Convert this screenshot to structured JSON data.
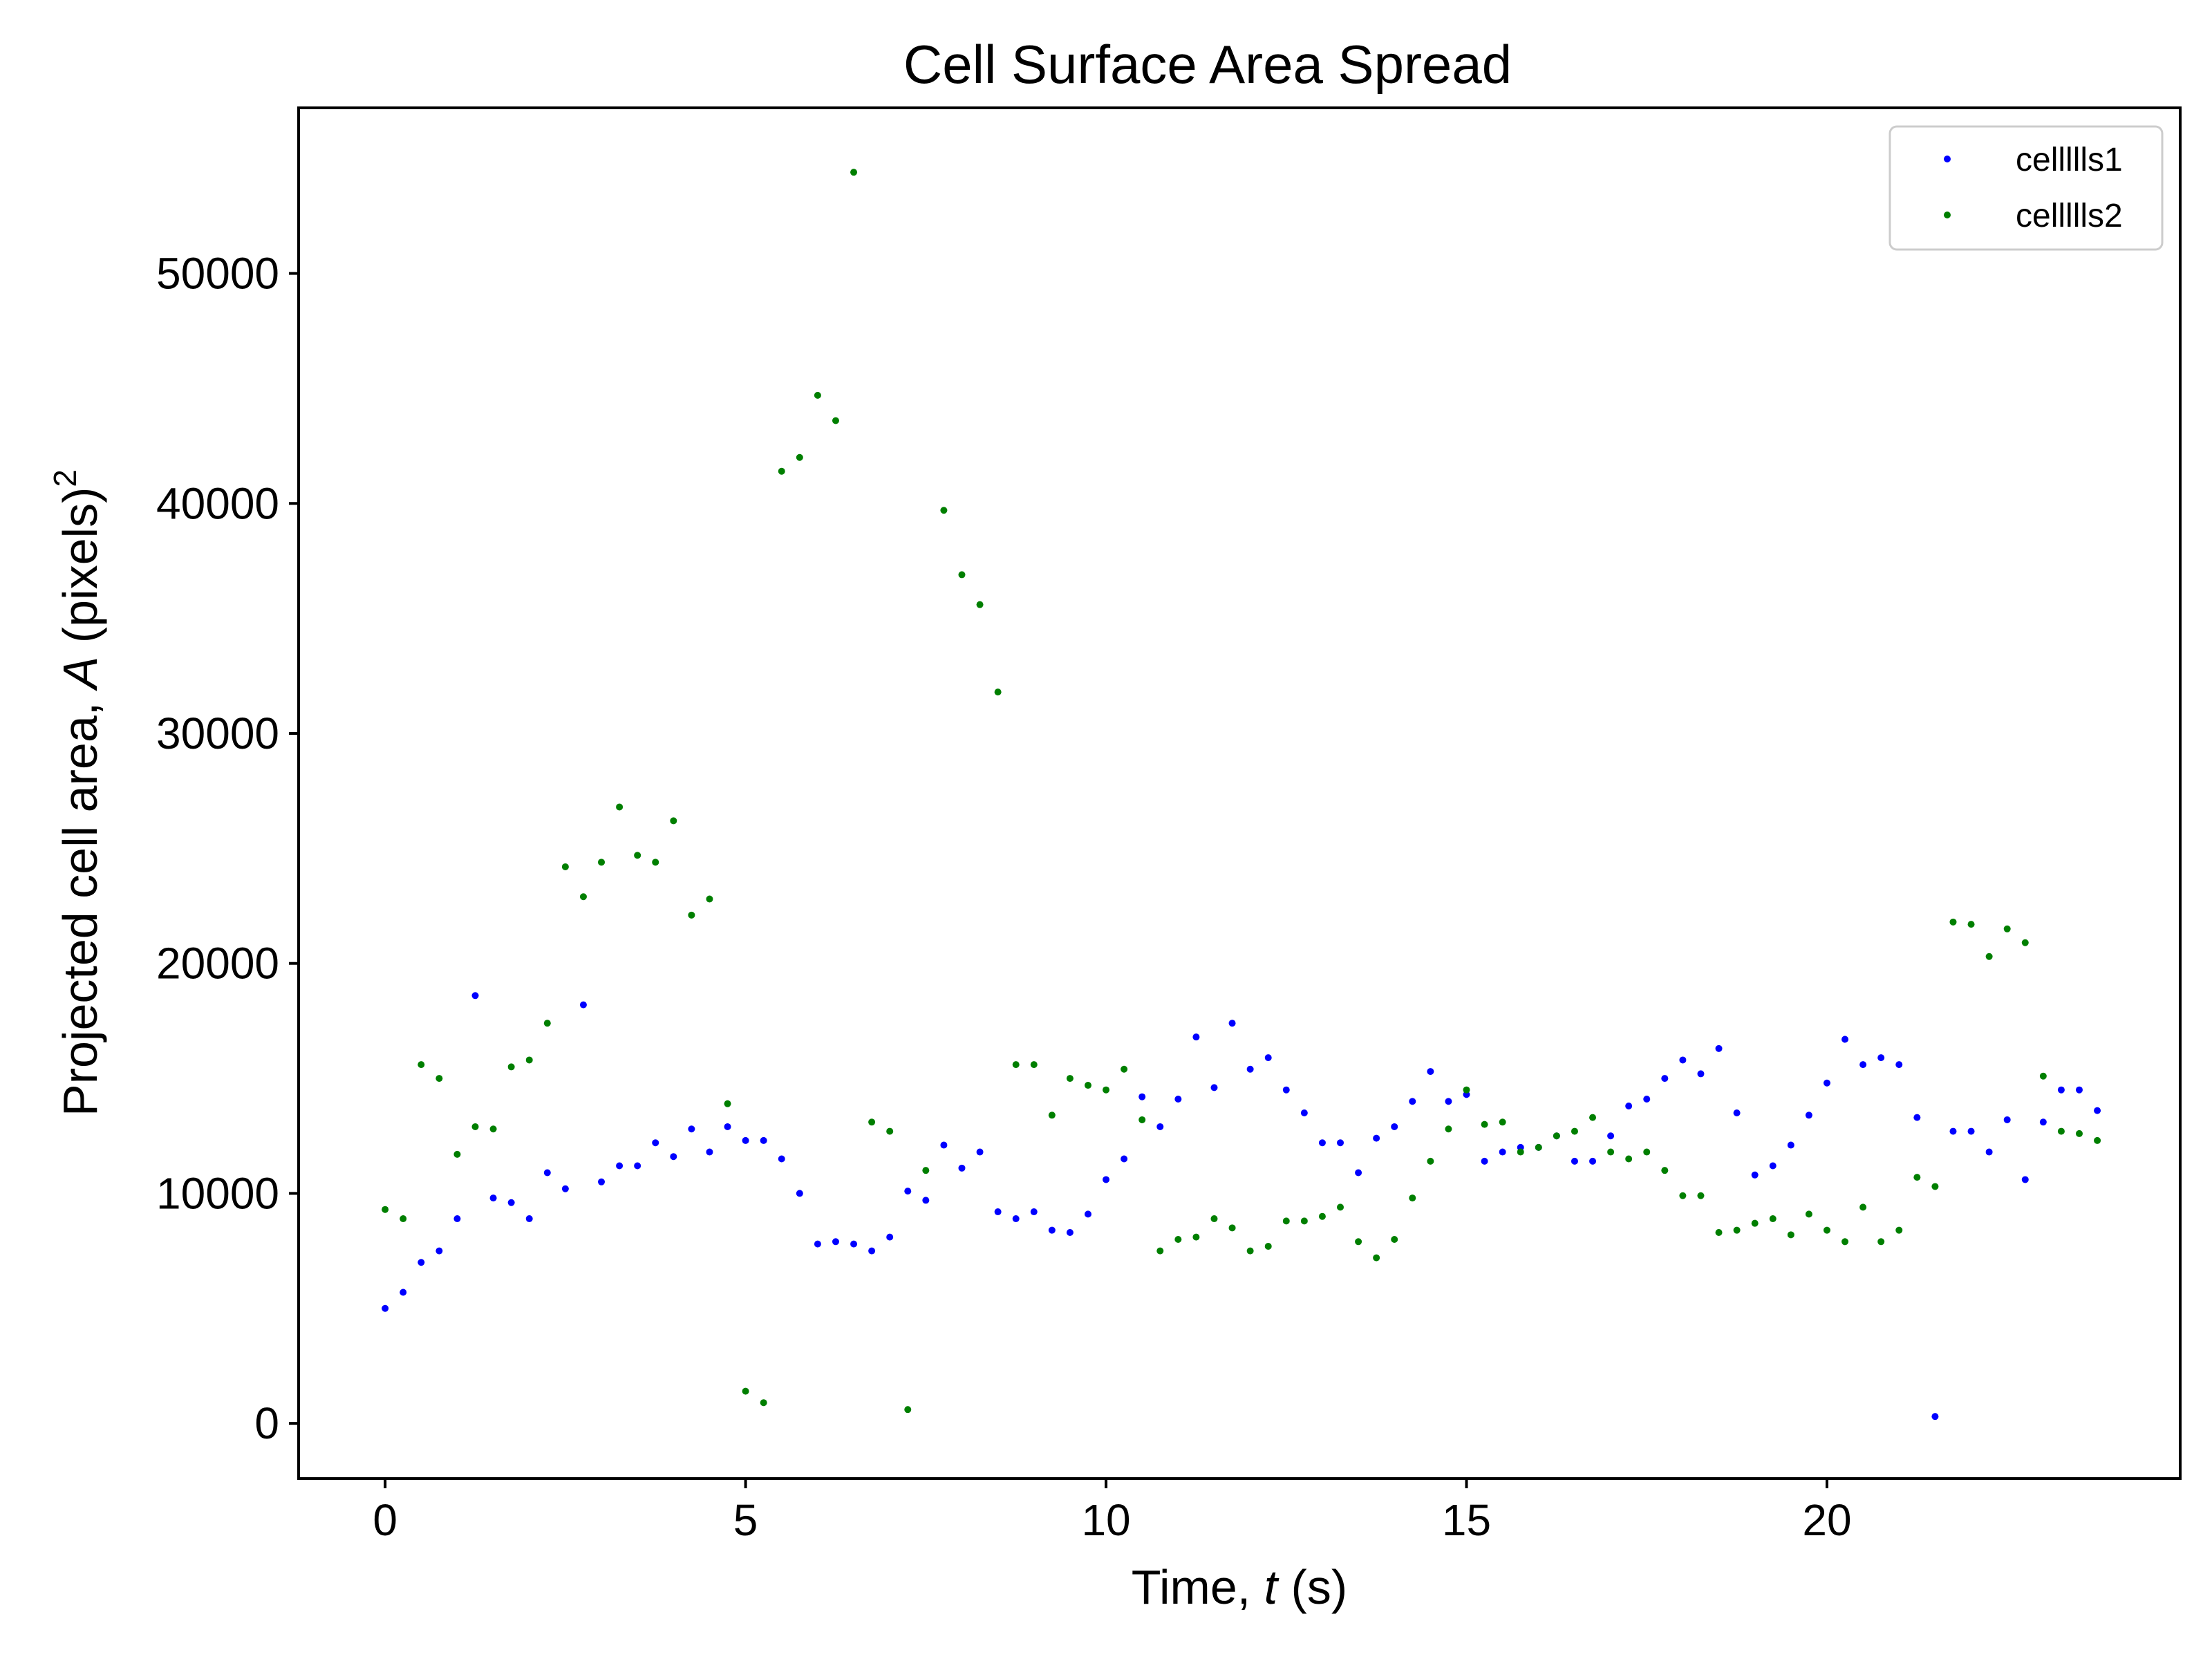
{
  "chart_data": {
    "type": "scatter",
    "title": "Cell Surface Area Spread",
    "xlabel": {
      "prefix": "Time, ",
      "var": "t",
      "suffix": " (s)"
    },
    "ylabel": {
      "prefix": "Projected cell area, ",
      "var": "A",
      "suffix": " (pixels)",
      "sup": "2"
    },
    "xlim": [
      -1.2,
      24.9
    ],
    "ylim": [
      -2400,
      57200
    ],
    "xticks": [
      0,
      5,
      10,
      15,
      20
    ],
    "yticks": [
      0,
      10000,
      20000,
      30000,
      40000,
      50000
    ],
    "grid": false,
    "legend_position": "top-right",
    "x": [
      0,
      0.25,
      0.5,
      0.75,
      1,
      1.25,
      1.5,
      1.75,
      2,
      2.25,
      2.5,
      2.75,
      3,
      3.25,
      3.5,
      3.75,
      4,
      4.25,
      4.5,
      4.75,
      5,
      5.25,
      5.5,
      5.75,
      6,
      6.25,
      6.5,
      6.75,
      7,
      7.25,
      7.5,
      7.75,
      8,
      8.25,
      8.5,
      8.75,
      9,
      9.25,
      9.5,
      9.75,
      10,
      10.25,
      10.5,
      10.75,
      11,
      11.25,
      11.5,
      11.75,
      12,
      12.25,
      12.5,
      12.75,
      13,
      13.25,
      13.5,
      13.75,
      14,
      14.25,
      14.5,
      14.75,
      15,
      15.25,
      15.5,
      15.75,
      16,
      16.25,
      16.5,
      16.75,
      17,
      17.25,
      17.5,
      17.75,
      18,
      18.25,
      18.5,
      18.75,
      19,
      19.25,
      19.5,
      19.75,
      20,
      20.25,
      20.5,
      20.75,
      21,
      21.25,
      21.5,
      21.75,
      22,
      22.25,
      22.5,
      22.75,
      23,
      23.25,
      23.5,
      23.75
    ],
    "series": [
      {
        "name": "cellllls1",
        "color": "#0000ff",
        "values": [
          5000,
          5700,
          7000,
          7500,
          8900,
          18600,
          9800,
          9600,
          8900,
          10900,
          10200,
          18200,
          10500,
          11200,
          11200,
          12200,
          11600,
          12800,
          11800,
          12900,
          12300,
          12300,
          11500,
          10000,
          7800,
          7900,
          7800,
          7500,
          8100,
          10100,
          9700,
          12100,
          11100,
          11800,
          9200,
          8900,
          9200,
          8400,
          8300,
          9100,
          10600,
          11500,
          14200,
          12900,
          14100,
          16800,
          14600,
          17400,
          15400,
          15900,
          14500,
          13500,
          12200,
          12200,
          10900,
          12400,
          12900,
          14000,
          15300,
          14000,
          14300,
          11400,
          11800,
          12000,
          12000,
          12500,
          11400,
          11400,
          12500,
          13800,
          14100,
          15000,
          15800,
          15200,
          16300,
          13500,
          10800,
          11200,
          12100,
          13400,
          14800,
          16700,
          15600,
          15900,
          15600,
          13300,
          300,
          12700,
          12700,
          11800,
          13200,
          10600,
          13100,
          14500,
          14500,
          13600
        ]
      },
      {
        "name": "cellllls2",
        "color": "#007f00",
        "values": [
          9300,
          8900,
          15600,
          15000,
          11700,
          12900,
          12800,
          15500,
          15800,
          17400,
          24200,
          22900,
          24400,
          26800,
          24700,
          24400,
          26200,
          22100,
          22800,
          13900,
          1400,
          900,
          41400,
          42000,
          44700,
          43600,
          54400,
          13100,
          12700,
          600,
          11000,
          39700,
          36900,
          35600,
          31800,
          15600,
          15600,
          13400,
          15000,
          14700,
          14500,
          15400,
          13200,
          7500,
          8000,
          8100,
          8900,
          8500,
          7500,
          7700,
          8800,
          8800,
          9000,
          9400,
          7900,
          7200,
          8000,
          9800,
          11400,
          12800,
          14500,
          13000,
          13100,
          11800,
          12000,
          12500,
          12700,
          13300,
          11800,
          11500,
          11800,
          11000,
          9900,
          9900,
          8300,
          8400,
          8700,
          8900,
          8200,
          9100,
          8400,
          7900,
          9400,
          7900,
          8400,
          10700,
          10300,
          21800,
          21700,
          20300,
          21500,
          20900,
          15100,
          12700,
          12600,
          12300
        ]
      }
    ]
  }
}
